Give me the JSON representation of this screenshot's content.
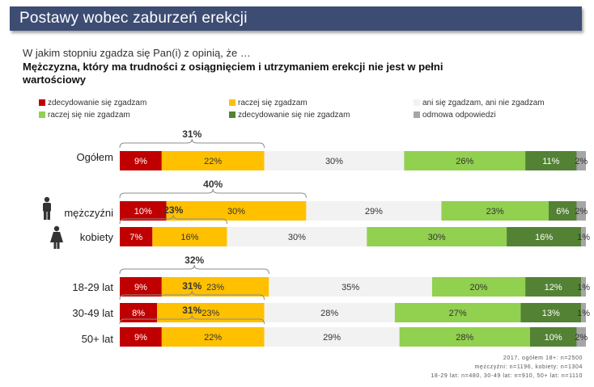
{
  "header": {
    "title": "Postawy wobec zaburzeń erekcji",
    "question": "W jakim stopniu zgadza się Pan(i) z opinią, że …",
    "statement": "Mężczyzna, który ma trudności z osiągnięciem i utrzymaniem erekcji nie jest w pełni wartościowy"
  },
  "colors": {
    "strongly_agree": "#c00000",
    "agree": "#ffc000",
    "neutral": "#f2f2f2",
    "disagree": "#92d050",
    "strongly_disagree": "#548235",
    "no_answer": "#a6a6a6"
  },
  "footnotes": [
    "2017, ogółem 18+: n=2500",
    "mężczyźni: n=1196, kobiety: n=1304",
    "18-29 lat: n=480, 30-49 lat: n=910, 50+ lat: n=1110"
  ],
  "chart_data": {
    "type": "bar",
    "orientation": "horizontal-stacked-100",
    "unit": "%",
    "categories": [
      "Ogółem",
      "mężczyźni",
      "kobiety",
      "18-29 lat",
      "30-49 lat",
      "50+ lat"
    ],
    "series": [
      {
        "name": "zdecydowanie się zgadzam",
        "values": [
          9,
          10,
          7,
          9,
          8,
          9
        ]
      },
      {
        "name": "raczej się zgadzam",
        "values": [
          22,
          30,
          16,
          23,
          23,
          22
        ]
      },
      {
        "name": "ani się zgadzam, ani nie zgadzam",
        "values": [
          30,
          29,
          30,
          35,
          28,
          29
        ]
      },
      {
        "name": "raczej się nie zgadzam",
        "values": [
          26,
          23,
          30,
          20,
          27,
          28
        ]
      },
      {
        "name": "zdecydowanie się nie zgadzam",
        "values": [
          11,
          6,
          16,
          12,
          13,
          10
        ]
      },
      {
        "name": "odmowa odpowiedzi",
        "values": [
          2,
          2,
          1,
          1,
          1,
          2
        ]
      }
    ],
    "agree_totals": [
      "31%",
      "40%",
      "23%",
      "32%",
      "31%",
      "31%"
    ],
    "legend_position": "top"
  }
}
